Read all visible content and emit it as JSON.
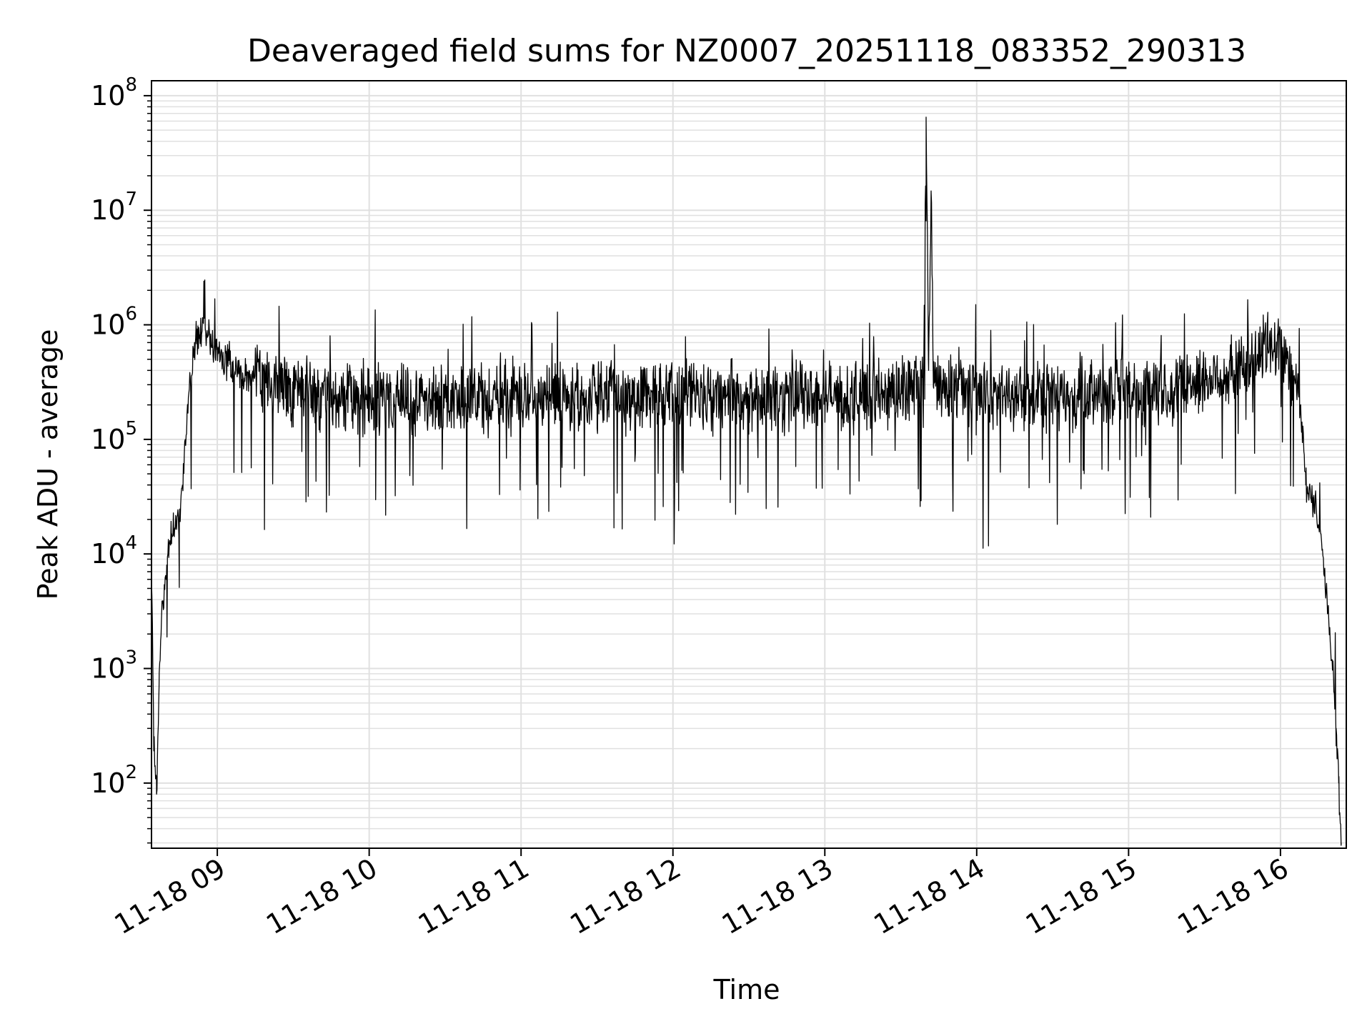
{
  "chart_data": {
    "type": "line",
    "title": "Deaveraged field sums for NZ0007_20251118_083352_290313",
    "xlabel": "Time",
    "ylabel": "Peak ADU - average",
    "yscale": "log",
    "ylim": [
      27,
      135000000
    ],
    "xlim": [
      "2025-11-18 08:34",
      "2025-11-18 16:26"
    ],
    "grid": true,
    "line_color": "#000000",
    "grid_color": "#e0e0e0",
    "x_ticks": [
      {
        "value": "2025-11-18 09:00",
        "label": "11-18 09"
      },
      {
        "value": "2025-11-18 10:00",
        "label": "11-18 10"
      },
      {
        "value": "2025-11-18 11:00",
        "label": "11-18 11"
      },
      {
        "value": "2025-11-18 12:00",
        "label": "11-18 12"
      },
      {
        "value": "2025-11-18 13:00",
        "label": "11-18 13"
      },
      {
        "value": "2025-11-18 14:00",
        "label": "11-18 14"
      },
      {
        "value": "2025-11-18 15:00",
        "label": "11-18 15"
      },
      {
        "value": "2025-11-18 16:00",
        "label": "11-18 16"
      }
    ],
    "y_ticks": [
      {
        "value": 100,
        "base": "10",
        "exp": "2"
      },
      {
        "value": 1000,
        "base": "10",
        "exp": "3"
      },
      {
        "value": 10000,
        "base": "10",
        "exp": "4"
      },
      {
        "value": 100000,
        "base": "10",
        "exp": "5"
      },
      {
        "value": 1000000,
        "base": "10",
        "exp": "6"
      },
      {
        "value": 10000000,
        "base": "10",
        "exp": "7"
      },
      {
        "value": 100000000,
        "base": "10",
        "exp": "8"
      }
    ],
    "series": [
      {
        "x": [
          "2025-11-18 08:34",
          "2025-11-18 08:35",
          "2025-11-18 08:36",
          "2025-11-18 08:37",
          "2025-11-18 08:38",
          "2025-11-18 08:40",
          "2025-11-18 08:42",
          "2025-11-18 08:45",
          "2025-11-18 08:48",
          "2025-11-18 08:51",
          "2025-11-18 08:54",
          "2025-11-18 08:57",
          "2025-11-18 09:00",
          "2025-11-18 09:05",
          "2025-11-18 09:10",
          "2025-11-18 09:20",
          "2025-11-18 09:30",
          "2025-11-18 09:45",
          "2025-11-18 10:00",
          "2025-11-18 10:30",
          "2025-11-18 11:00",
          "2025-11-18 11:30",
          "2025-11-18 12:00",
          "2025-11-18 12:30",
          "2025-11-18 13:00",
          "2025-11-18 13:30",
          "2025-11-18 13:39",
          "2025-11-18 13:40",
          "2025-11-18 13:41",
          "2025-11-18 13:42",
          "2025-11-18 13:43",
          "2025-11-18 13:50",
          "2025-11-18 14:00",
          "2025-11-18 14:30",
          "2025-11-18 15:00",
          "2025-11-18 15:30",
          "2025-11-18 15:45",
          "2025-11-18 15:55",
          "2025-11-18 16:00",
          "2025-11-18 16:05",
          "2025-11-18 16:08",
          "2025-11-18 16:10",
          "2025-11-18 16:13",
          "2025-11-18 16:16",
          "2025-11-18 16:19",
          "2025-11-18 16:21",
          "2025-11-18 16:22",
          "2025-11-18 16:23",
          "2025-11-18 16:24"
        ],
        "y": [
          6000,
          200,
          80,
          700,
          3000,
          8000,
          15000,
          20000,
          150000,
          700000,
          900000,
          800000,
          600000,
          450000,
          380000,
          320000,
          260000,
          230000,
          220000,
          230000,
          240000,
          240000,
          250000,
          240000,
          230000,
          250000,
          300000,
          65000000,
          400000,
          14000000,
          280000,
          260000,
          250000,
          240000,
          250000,
          330000,
          400000,
          650000,
          700000,
          400000,
          200000,
          40000,
          30000,
          15000,
          3000,
          800,
          300,
          100,
          30
        ]
      }
    ]
  }
}
